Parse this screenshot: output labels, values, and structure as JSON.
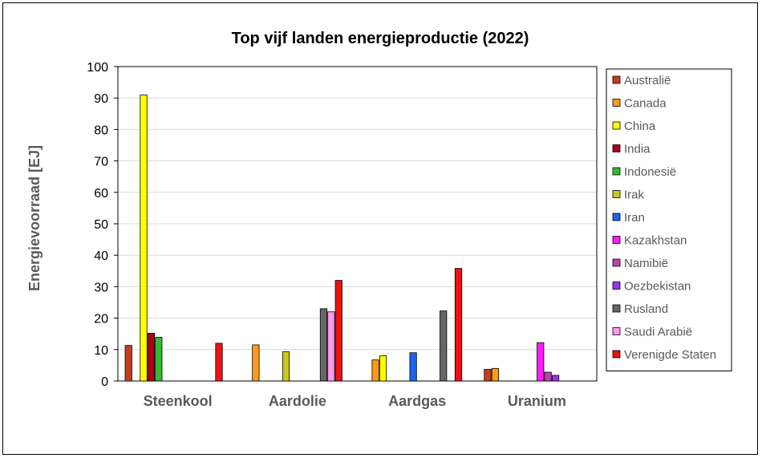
{
  "chart_data": {
    "type": "bar",
    "title": "Top vijf landen energieproductie (2022)",
    "xlabel": "",
    "ylabel": "Energievoorraad [EJ]",
    "ylim": [
      0,
      100
    ],
    "yticks": [
      0,
      10,
      20,
      30,
      40,
      50,
      60,
      70,
      80,
      90,
      100
    ],
    "grid": true,
    "legend_position": "right",
    "categories": [
      "Steenkool",
      "Aardolie",
      "Aardgas",
      "Uranium"
    ],
    "series": [
      {
        "name": "Australië",
        "color": "#c0401c",
        "values": [
          11.3,
          null,
          null,
          3.7
        ]
      },
      {
        "name": "Canada",
        "color": "#ff9a1a",
        "values": [
          null,
          11.5,
          6.7,
          4.0
        ]
      },
      {
        "name": "China",
        "color": "#ffff00",
        "values": [
          91.0,
          null,
          8.0,
          null
        ]
      },
      {
        "name": "India",
        "color": "#b0001a",
        "values": [
          15.2,
          null,
          null,
          null
        ]
      },
      {
        "name": "Indonesië",
        "color": "#33bb33",
        "values": [
          13.9,
          null,
          null,
          null
        ]
      },
      {
        "name": "Irak",
        "color": "#c8c81e",
        "values": [
          null,
          9.3,
          null,
          null
        ]
      },
      {
        "name": "Iran",
        "color": "#1a66ee",
        "values": [
          null,
          null,
          9.0,
          null
        ]
      },
      {
        "name": "Kazakhstan",
        "color": "#ff1aff",
        "values": [
          null,
          null,
          null,
          12.2
        ]
      },
      {
        "name": "Namibië",
        "color": "#bb44aa",
        "values": [
          null,
          null,
          null,
          2.8
        ]
      },
      {
        "name": "Oezbekistan",
        "color": "#9933ee",
        "values": [
          null,
          null,
          null,
          1.8
        ]
      },
      {
        "name": "Rusland",
        "color": "#666666",
        "values": [
          null,
          23.0,
          22.3,
          null
        ]
      },
      {
        "name": "Saudi Arabië",
        "color": "#ff99ee",
        "values": [
          null,
          22.0,
          null,
          null
        ]
      },
      {
        "name": "Verenigde Staten",
        "color": "#ee1111",
        "values": [
          12.0,
          32.0,
          35.8,
          null
        ]
      }
    ]
  }
}
